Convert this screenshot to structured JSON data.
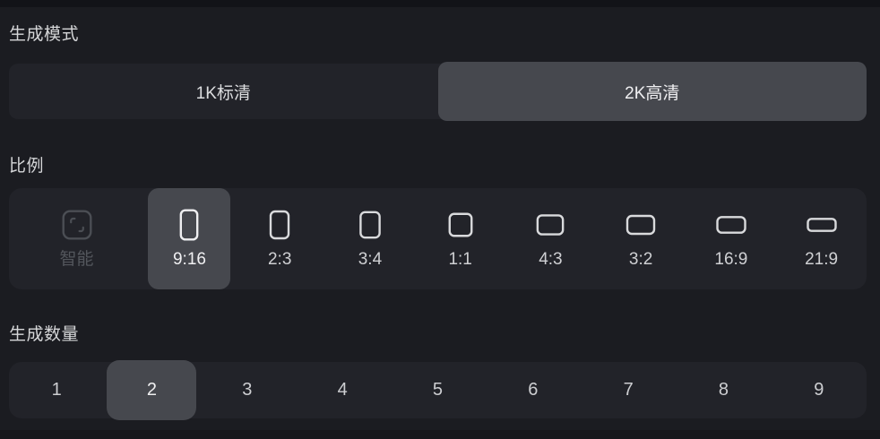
{
  "colors": {
    "page_bg": "#1B1C21",
    "top_strip": "#121318",
    "bottom_strip": "#16171B",
    "container_bg": "#222329",
    "selected_bg": "#46484E",
    "label_text": "#D5D6D8",
    "selected_text": "#F0F0F2",
    "option_text": "#CFD0D3",
    "disabled_text": "#53565C"
  },
  "generation_mode": {
    "label": "生成模式",
    "options": [
      {
        "id": "1k",
        "label": "1K标清",
        "selected": false
      },
      {
        "id": "2k",
        "label": "2K高清",
        "selected": true
      }
    ]
  },
  "aspect_ratio": {
    "label": "比例",
    "options": [
      {
        "id": "smart",
        "label": "智能",
        "icon": "smart-frame-icon",
        "selected": false,
        "disabled": true
      },
      {
        "id": "9:16",
        "label": "9:16",
        "icon": "aspect-9-16-icon",
        "ratio": "9:16",
        "selected": true,
        "disabled": false
      },
      {
        "id": "2:3",
        "label": "2:3",
        "icon": "aspect-2-3-icon",
        "ratio": "2:3",
        "selected": false,
        "disabled": false
      },
      {
        "id": "3:4",
        "label": "3:4",
        "icon": "aspect-3-4-icon",
        "ratio": "3:4",
        "selected": false,
        "disabled": false
      },
      {
        "id": "1:1",
        "label": "1:1",
        "icon": "aspect-1-1-icon",
        "ratio": "1:1",
        "selected": false,
        "disabled": false
      },
      {
        "id": "4:3",
        "label": "4:3",
        "icon": "aspect-4-3-icon",
        "ratio": "4:3",
        "selected": false,
        "disabled": false
      },
      {
        "id": "3:2",
        "label": "3:2",
        "icon": "aspect-3-2-icon",
        "ratio": "3:2",
        "selected": false,
        "disabled": false
      },
      {
        "id": "16:9",
        "label": "16:9",
        "icon": "aspect-16-9-icon",
        "ratio": "16:9",
        "selected": false,
        "disabled": false
      },
      {
        "id": "21:9",
        "label": "21:9",
        "icon": "aspect-21-9-icon",
        "ratio": "21:9",
        "selected": false,
        "disabled": false
      }
    ]
  },
  "generation_count": {
    "label": "生成数量",
    "options": [
      "1",
      "2",
      "3",
      "4",
      "5",
      "6",
      "7",
      "8",
      "9"
    ],
    "selected": "2"
  }
}
